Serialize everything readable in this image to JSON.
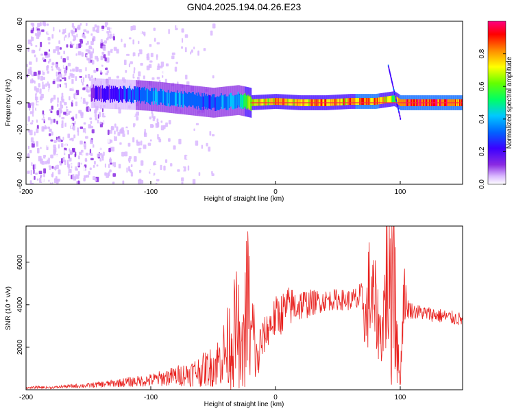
{
  "title": "GN04.2025.194.04.26.E23",
  "colors": {
    "background": "#ffffff",
    "snr_line": "#e8211e",
    "trace_core": "#ff1f4f"
  },
  "chart_data": [
    {
      "type": "heatmap",
      "xlabel": "Height of straight line (km)",
      "ylabel": "Frequency (Hz)",
      "xlim": [
        -200,
        150
      ],
      "ylim": [
        -60,
        60
      ],
      "x_ticks": [
        "-200",
        "-100",
        "0",
        "100"
      ],
      "y_ticks": [
        "-60",
        "-40",
        "-20",
        "0",
        "20",
        "40",
        "60"
      ],
      "colorbar": {
        "label": "Normalized spectral amplitude",
        "range": [
          0,
          1
        ],
        "ticks": [
          "0.0",
          "0.2",
          "0.4",
          "0.6",
          "0.8"
        ],
        "colormap": [
          "#ffffff",
          "#d9b7ff",
          "#8a2be2",
          "#3c00ff",
          "#0064ff",
          "#00c8ff",
          "#00ff64",
          "#64ff00",
          "#ffff00",
          "#ff8c00",
          "#ff0000",
          "#ff0080"
        ]
      },
      "trace": {
        "x": [
          -145,
          -120,
          -100,
          -80,
          -60,
          -50,
          -40,
          -30,
          -20,
          0,
          20,
          40,
          60,
          80,
          95,
          100,
          150
        ],
        "center_freq_hz": [
          7,
          6,
          5,
          3,
          1,
          0,
          1,
          2,
          0,
          1,
          0,
          0,
          1,
          1,
          3,
          0,
          0
        ],
        "amplitude": [
          0.25,
          0.35,
          0.45,
          0.45,
          0.4,
          0.4,
          0.45,
          0.5,
          0.8,
          0.9,
          0.9,
          0.9,
          0.9,
          0.95,
          0.7,
          1.0,
          1.0
        ]
      },
      "noise_region_x": [
        -200,
        -60
      ]
    },
    {
      "type": "line",
      "xlabel": "Height of straight line (km)",
      "ylabel": "SNR (10 * v/v)",
      "xlim": [
        -200,
        150
      ],
      "ylim": [
        0,
        7700
      ],
      "x_ticks": [
        "-200",
        "-100",
        "0",
        "100"
      ],
      "y_ticks": [
        "2000",
        "4000",
        "6000"
      ],
      "series": [
        {
          "x": [
            -200,
            -190,
            -180,
            -170,
            -160,
            -150,
            -140,
            -130,
            -120,
            -110,
            -100,
            -90,
            -80,
            -70,
            -60,
            -50,
            -45,
            -40,
            -35,
            -30,
            -28,
            -25,
            -22,
            -20,
            -18,
            -15,
            -12,
            -10,
            -5,
            0,
            5,
            10,
            20,
            30,
            40,
            50,
            60,
            70,
            72,
            75,
            80,
            85,
            88,
            90,
            92,
            95,
            98,
            100,
            103,
            105,
            110,
            120,
            130,
            140,
            150
          ],
          "values": [
            80,
            120,
            100,
            150,
            180,
            200,
            250,
            300,
            350,
            400,
            450,
            550,
            650,
            750,
            900,
            1100,
            1400,
            1800,
            2400,
            3000,
            1000,
            2600,
            4500,
            2000,
            2800,
            1200,
            2000,
            2400,
            3000,
            3400,
            3600,
            3900,
            4000,
            4100,
            4200,
            4250,
            4200,
            4250,
            3000,
            4600,
            3800,
            2400,
            4500,
            6500,
            3500,
            7500,
            1500,
            300,
            5000,
            3900,
            3700,
            3600,
            3500,
            3400,
            3300
          ],
          "jitter_scale": [
            0.5,
            0.5,
            0.5,
            0.5,
            0.55,
            0.55,
            0.6,
            0.6,
            0.65,
            0.65,
            0.7,
            0.7,
            0.75,
            0.8,
            0.85,
            0.9,
            0.9,
            1.0,
            1.0,
            1.0,
            1.0,
            1.0,
            1.0,
            1.0,
            1.0,
            0.9,
            0.7,
            0.35,
            0.3,
            0.3,
            0.28,
            0.25,
            0.2,
            0.15,
            0.12,
            0.12,
            0.12,
            0.2,
            0.5,
            0.6,
            0.6,
            0.5,
            0.7,
            0.9,
            1.0,
            1.0,
            1.0,
            0.6,
            0.4,
            0.15,
            0.1,
            0.1,
            0.1,
            0.1,
            0.1
          ]
        }
      ]
    }
  ]
}
